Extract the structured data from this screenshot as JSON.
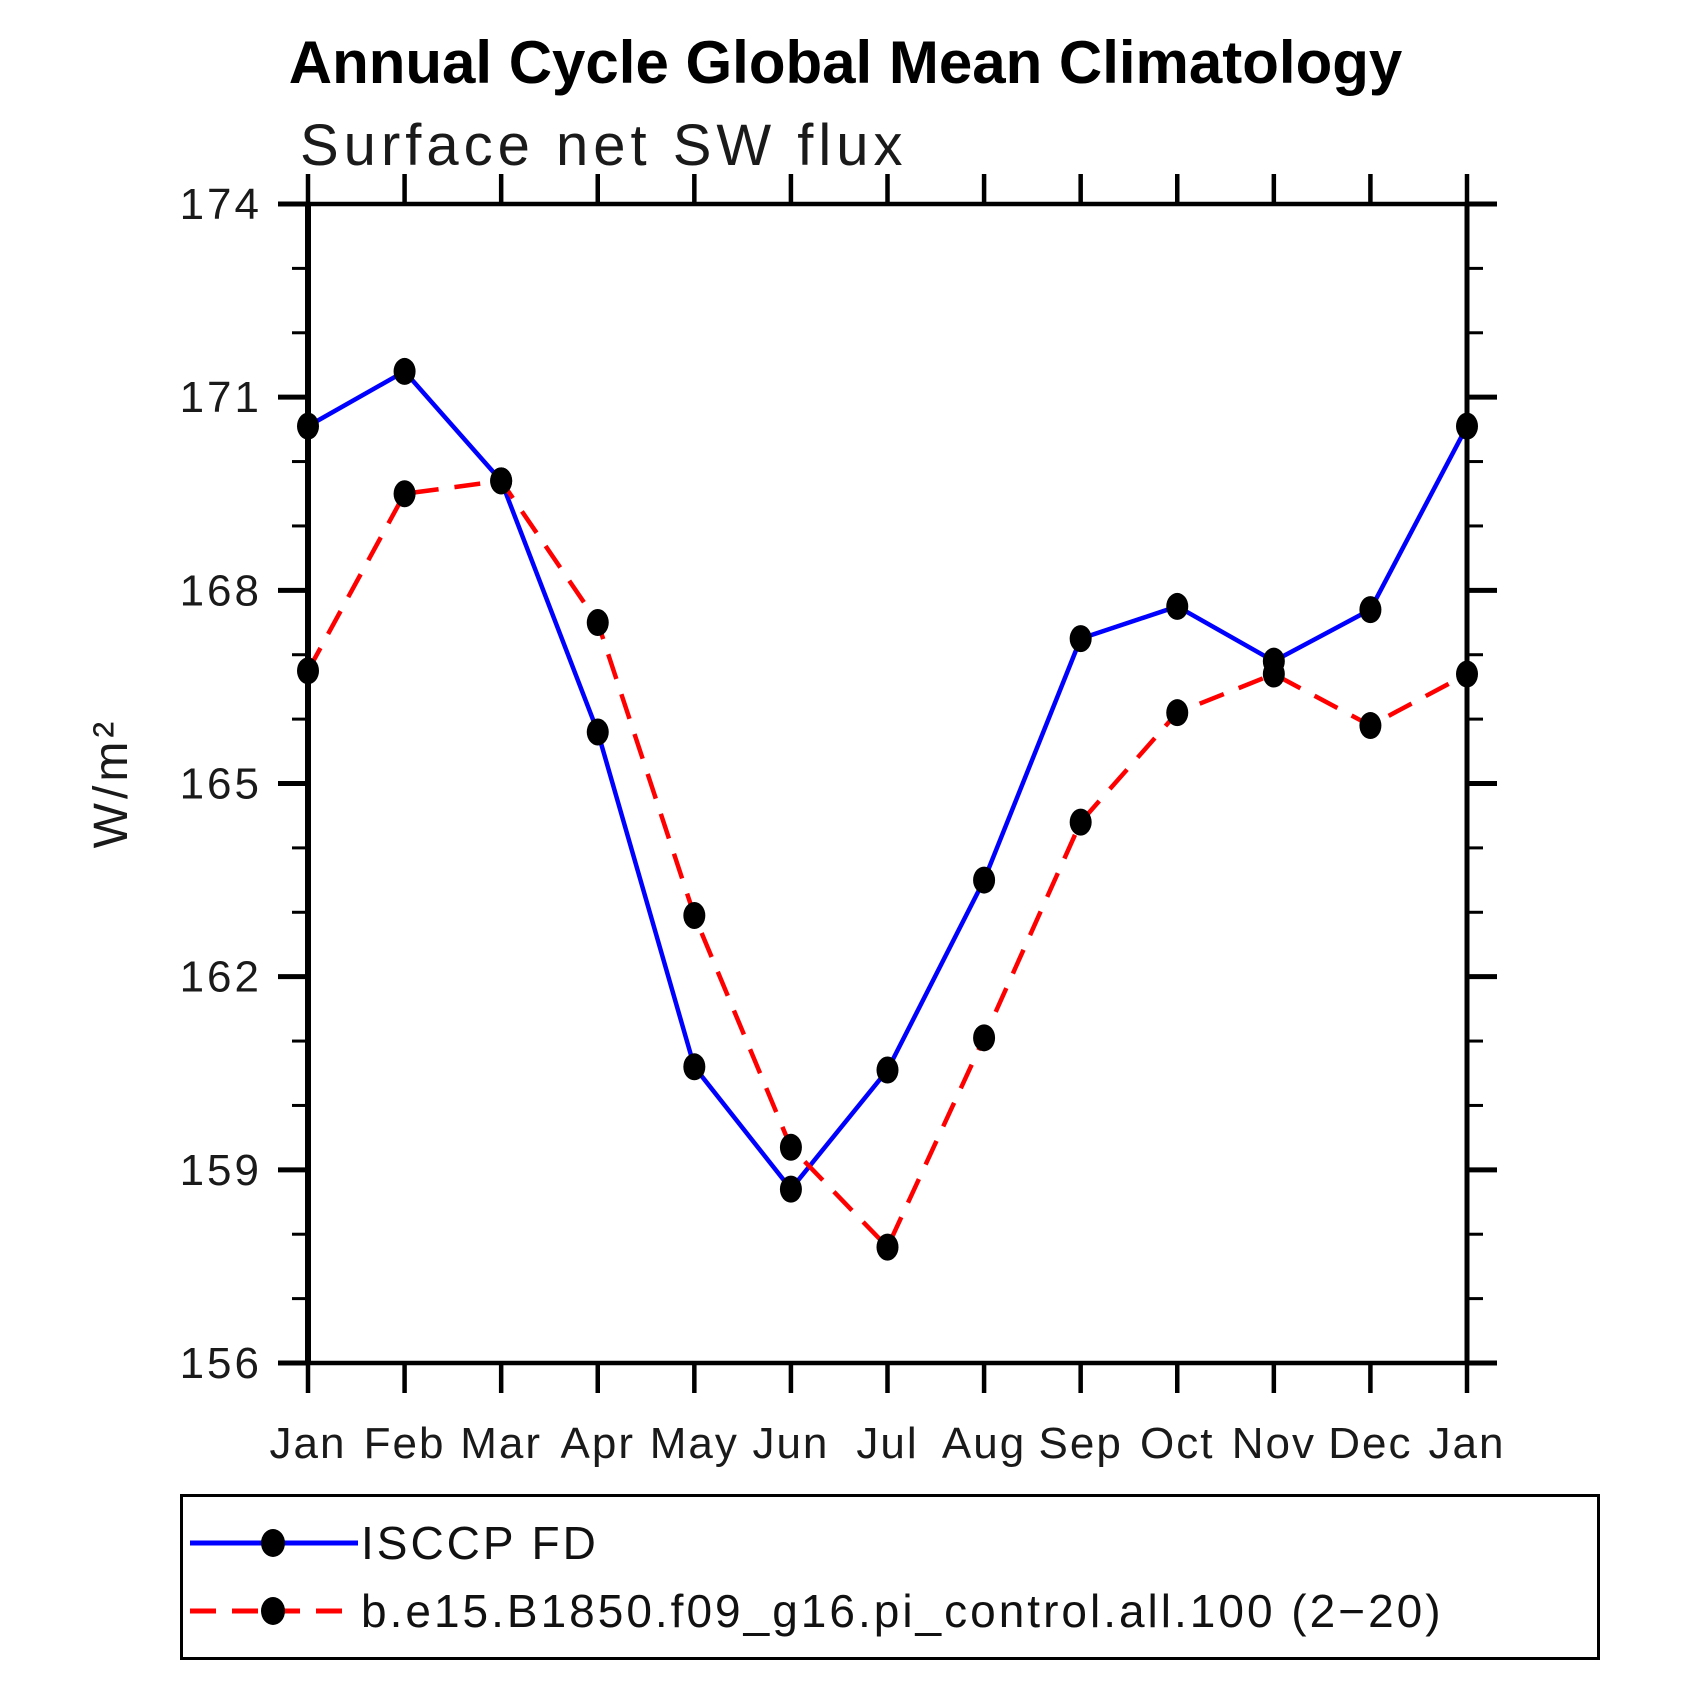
{
  "chart_data": {
    "type": "line",
    "title": "Annual Cycle Global Mean Climatology",
    "subtitle": "Surface net SW flux",
    "ylabel": "W/m²",
    "xlabel": "",
    "ylim": [
      156,
      174
    ],
    "ytick_major_step": 3,
    "ytick_minor_step": 1,
    "ytick_labels": [
      "156",
      "159",
      "162",
      "165",
      "168",
      "171",
      "174"
    ],
    "grid": false,
    "legend_position": "bottom",
    "categories": [
      "Jan",
      "Feb",
      "Mar",
      "Apr",
      "May",
      "Jun",
      "Jul",
      "Aug",
      "Sep",
      "Oct",
      "Nov",
      "Dec",
      "Jan"
    ],
    "series": [
      {
        "name": "ISCCP FD",
        "color": "#0000ff",
        "line_style": "solid",
        "marker": "filled-circle",
        "marker_color": "#000000",
        "values": [
          170.55,
          171.4,
          169.7,
          165.8,
          160.6,
          158.7,
          160.55,
          163.5,
          167.25,
          167.75,
          166.9,
          167.7,
          170.55
        ]
      },
      {
        "name": "b.e15.B1850.f09_g16.pi_control.all.100 (2−20)",
        "color": "#ff0000",
        "line_style": "dashed",
        "marker": "filled-circle",
        "marker_color": "#000000",
        "values": [
          166.75,
          169.5,
          169.7,
          167.5,
          162.95,
          159.35,
          157.8,
          161.05,
          164.4,
          166.1,
          166.7,
          165.9,
          166.7
        ]
      }
    ]
  }
}
